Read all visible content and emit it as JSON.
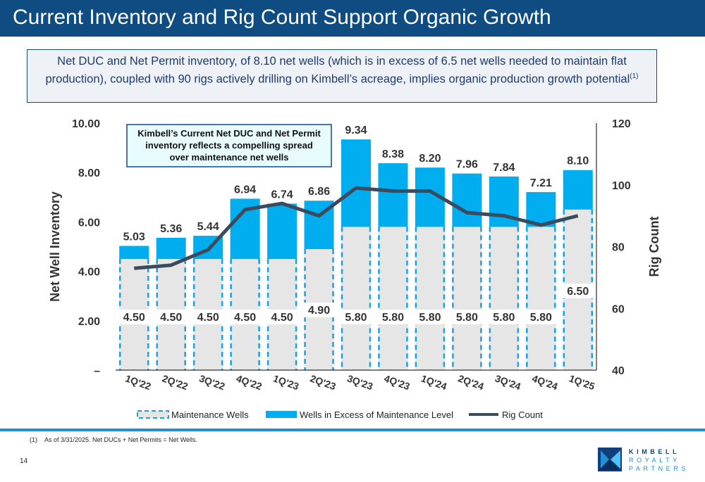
{
  "slide": {
    "title": "Current Inventory and Rig Count Support Organic Growth",
    "callout_main": "Net DUC and Net Permit inventory, of 8.10 net wells (which is in excess of 6.5 net wells needed to maintain flat production), coupled with 90 rigs actively drilling on Kimbell’s acreage, implies organic production growth potential",
    "callout_sup": "(1)",
    "footnote_marker": "(1)",
    "footnote_text": "As of 3/31/2025. Net DUCs + Net Permits = Net Wells.",
    "page_number": "14",
    "logo": {
      "line1": "KIMBELL",
      "line2": "ROYALTY",
      "line3": "PARTNERS"
    }
  },
  "colors": {
    "title_bar": "#0f4c81",
    "excess": "#00aeef",
    "maintenance_fill": "#e6e6e6",
    "maintenance_dash": "#1f9fe0",
    "rig_line": "#3b4a5c",
    "divider": "#1f8fd6"
  },
  "chart_data": {
    "type": "bar",
    "stacked": true,
    "categories": [
      "1Q'22",
      "2Q'22",
      "3Q'22",
      "4Q'22",
      "1Q'23",
      "2Q'23",
      "3Q'23",
      "4Q'23",
      "1Q'24",
      "2Q'24",
      "3Q'24",
      "4Q'24",
      "1Q'25"
    ],
    "series": [
      {
        "name": "Maintenance Wells",
        "values": [
          4.5,
          4.5,
          4.5,
          4.5,
          4.5,
          4.9,
          5.8,
          5.8,
          5.8,
          5.8,
          5.8,
          5.8,
          6.5
        ]
      },
      {
        "name": "Wells in Excess of Maintenance Level",
        "values": [
          0.53,
          0.86,
          0.94,
          2.44,
          2.24,
          1.96,
          3.54,
          2.58,
          2.4,
          2.16,
          2.04,
          1.41,
          1.6
        ]
      },
      {
        "name": "Rig Count",
        "axis": "right",
        "type": "line",
        "values": [
          73,
          74,
          79,
          92,
          94,
          90,
          99,
          98,
          98,
          91,
          90,
          87,
          90
        ]
      }
    ],
    "maintenance_labels": [
      "4.50",
      "4.50",
      "4.50",
      "4.50",
      "4.50",
      "4.90",
      "5.80",
      "5.80",
      "5.80",
      "5.80",
      "5.80",
      "5.80",
      "6.50"
    ],
    "total_labels": [
      "5.03",
      "5.36",
      "5.44",
      "6.94",
      "6.74",
      "6.86",
      "9.34",
      "8.38",
      "8.20",
      "7.96",
      "7.84",
      "7.21",
      "8.10"
    ],
    "totals": [
      5.03,
      5.36,
      5.44,
      6.94,
      6.74,
      6.86,
      9.34,
      8.38,
      8.2,
      7.96,
      7.84,
      7.21,
      8.1
    ],
    "ylabel": "Net Well Inventory",
    "y2label": "Rig Count",
    "ylim": [
      0,
      10
    ],
    "y2lim": [
      40,
      120
    ],
    "yticks": [
      "–",
      "2.00",
      "4.00",
      "6.00",
      "8.00",
      "10.00"
    ],
    "y2ticks": [
      "40",
      "60",
      "80",
      "100",
      "120"
    ],
    "annotation": [
      "Kimbell’s Current Net DUC and Net Permit",
      "inventory reflects a compelling spread",
      "over maintenance net wells"
    ],
    "legend": [
      "Maintenance Wells",
      "Wells in Excess of Maintenance Level",
      "Rig Count"
    ],
    "legend_position": "bottom",
    "grid": false
  }
}
